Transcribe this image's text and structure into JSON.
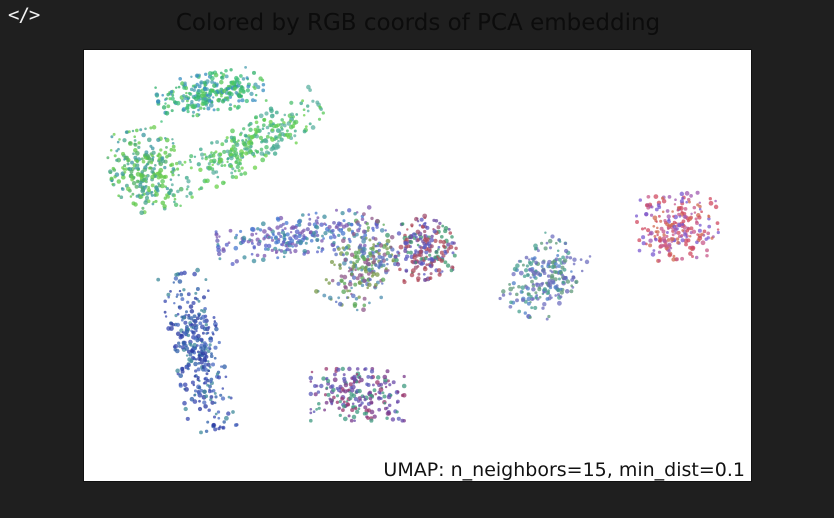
{
  "toolbar": {
    "code_icon": "code-icon",
    "code_icon_glyph": "</>"
  },
  "chart_data": {
    "type": "scatter",
    "title": "Colored by RGB coords of PCA embedding",
    "xlabel": "",
    "ylabel": "",
    "grid": false,
    "axes_ticks": false,
    "annotation": "UMAP: n_neighbors=15, min_dist=0.1",
    "color_encoding": "RGB coordinates of PCA embedding",
    "clusters": [
      {
        "id": "c1",
        "cx": 0.19,
        "cy": 0.9,
        "rx": 0.08,
        "ry": 0.045,
        "rot": -10,
        "n": 260,
        "colors": [
          "#2fb06a",
          "#3fc07a",
          "#4a9fb0",
          "#55c75a",
          "#3a8fc0"
        ]
      },
      {
        "id": "c2",
        "cx": 0.24,
        "cy": 0.77,
        "rx": 0.13,
        "ry": 0.05,
        "rot": -30,
        "n": 300,
        "colors": [
          "#5ac95a",
          "#4cbf6e",
          "#6ad14a",
          "#3aa88a",
          "#5bb0a0"
        ]
      },
      {
        "id": "c3",
        "cx": 0.09,
        "cy": 0.72,
        "rx": 0.05,
        "ry": 0.095,
        "rot": -10,
        "n": 260,
        "colors": [
          "#5ec84a",
          "#4fb066",
          "#48a58c",
          "#6ccc50",
          "#3b98a0"
        ]
      },
      {
        "id": "c4",
        "cx": 0.32,
        "cy": 0.57,
        "rx": 0.12,
        "ry": 0.045,
        "rot": -8,
        "n": 250,
        "colors": [
          "#5a63c8",
          "#4a7ad0",
          "#6b5fb5",
          "#3f8fa0",
          "#7d5ab0"
        ]
      },
      {
        "id": "c5",
        "cx": 0.42,
        "cy": 0.5,
        "rx": 0.045,
        "ry": 0.105,
        "rot": 28,
        "n": 240,
        "colors": [
          "#5ca85a",
          "#7a9a4a",
          "#4f8fb0",
          "#8f5a8a",
          "#5a70c0"
        ]
      },
      {
        "id": "c6",
        "cx": 0.51,
        "cy": 0.54,
        "rx": 0.045,
        "ry": 0.07,
        "rot": -20,
        "n": 220,
        "colors": [
          "#a05070",
          "#6a4aa0",
          "#3f9a70",
          "#b04a5a",
          "#5a5ac0"
        ]
      },
      {
        "id": "c7",
        "cx": 0.69,
        "cy": 0.47,
        "rx": 0.045,
        "ry": 0.095,
        "rot": 28,
        "n": 230,
        "colors": [
          "#4f7fc8",
          "#5f9a7a",
          "#6a6ab8",
          "#4aa090",
          "#7070c0"
        ]
      },
      {
        "id": "c8",
        "cx": 0.89,
        "cy": 0.59,
        "rx": 0.06,
        "ry": 0.075,
        "rot": -5,
        "n": 230,
        "colors": [
          "#d04a60",
          "#c85a8a",
          "#a05ab0",
          "#d06a50",
          "#7a5ad0"
        ]
      },
      {
        "id": "c9",
        "cx": 0.17,
        "cy": 0.3,
        "rx": 0.035,
        "ry": 0.185,
        "rot": -12,
        "n": 320,
        "colors": [
          "#3a4ab0",
          "#2f5fa8",
          "#4a6ac0",
          "#3f8a9a",
          "#2a3aa0"
        ]
      },
      {
        "id": "c10",
        "cx": 0.41,
        "cy": 0.2,
        "rx": 0.07,
        "ry": 0.06,
        "rot": 0,
        "n": 210,
        "colors": [
          "#7a3a8a",
          "#5a5ab8",
          "#3f9a80",
          "#9a3a70",
          "#6a4aa8"
        ]
      }
    ]
  }
}
